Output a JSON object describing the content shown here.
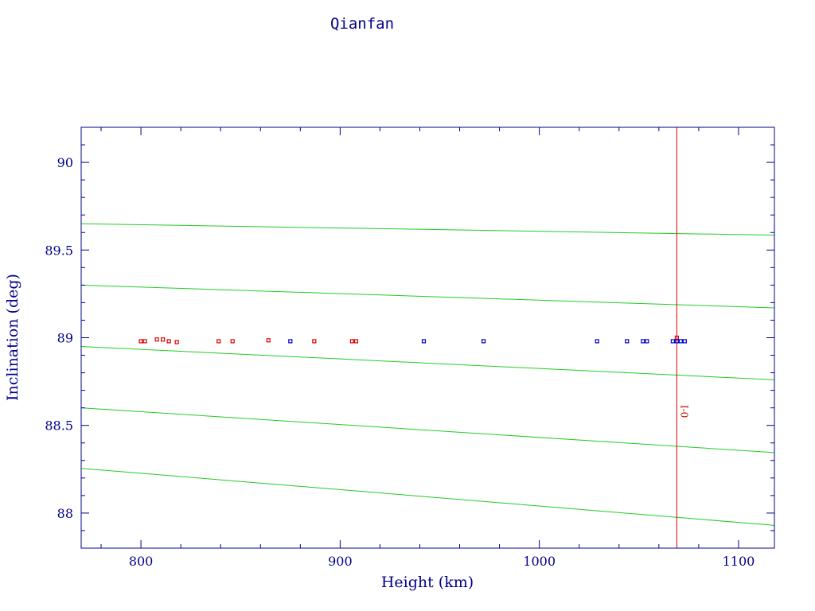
{
  "chart_data": {
    "type": "scatter",
    "title": "Qianfan",
    "xlabel": "Height (km)",
    "ylabel": "Inclination (deg)",
    "xlim": [
      770,
      1118
    ],
    "ylim": [
      87.8,
      90.2
    ],
    "xticks": [
      800,
      900,
      1000,
      1100
    ],
    "xtick_labels": [
      "800",
      "900",
      "1000",
      "1100"
    ],
    "yticks": [
      88,
      88.5,
      89,
      89.5,
      90
    ],
    "ytick_labels": [
      "88",
      "88.5",
      "89",
      "89.5",
      "90"
    ],
    "x_minor_step": 20,
    "y_minor_step": 0.1,
    "grid": false,
    "colors": {
      "axes": "#00008b",
      "text": "#00008b",
      "series_a": "#dd0000",
      "series_b": "#0000cc",
      "curves": "#22cc22",
      "marker_line": "#cc0000"
    },
    "series": [
      {
        "color": "#dd0000",
        "points": [
          [
            800,
            88.98
          ],
          [
            802,
            88.98
          ],
          [
            808,
            88.99
          ],
          [
            811,
            88.99
          ],
          [
            814,
            88.98
          ],
          [
            818,
            88.975
          ],
          [
            839,
            88.98
          ],
          [
            846,
            88.98
          ],
          [
            864,
            88.985
          ],
          [
            887,
            88.98
          ],
          [
            906,
            88.98
          ],
          [
            908,
            88.98
          ],
          [
            1069,
            89.0
          ]
        ]
      },
      {
        "color": "#0000cc",
        "points": [
          [
            875,
            88.98
          ],
          [
            942,
            88.98
          ],
          [
            972,
            88.98
          ],
          [
            1029,
            88.98
          ],
          [
            1044,
            88.98
          ],
          [
            1052,
            88.98
          ],
          [
            1054,
            88.98
          ],
          [
            1067,
            88.98
          ],
          [
            1069,
            88.98
          ],
          [
            1071,
            88.98
          ],
          [
            1073,
            88.98
          ]
        ]
      }
    ],
    "curves": [
      {
        "x": [
          770,
          1118
        ],
        "y": [
          89.65,
          89.585
        ]
      },
      {
        "x": [
          770,
          1118
        ],
        "y": [
          89.3,
          89.17
        ]
      },
      {
        "x": [
          770,
          1118
        ],
        "y": [
          88.95,
          88.76
        ]
      },
      {
        "x": [
          770,
          1118
        ],
        "y": [
          88.6,
          88.345
        ]
      },
      {
        "x": [
          770,
          1118
        ],
        "y": [
          88.255,
          87.93
        ]
      }
    ],
    "vline": {
      "x": 1069,
      "label": "I-0",
      "label_y": 88.58
    }
  }
}
